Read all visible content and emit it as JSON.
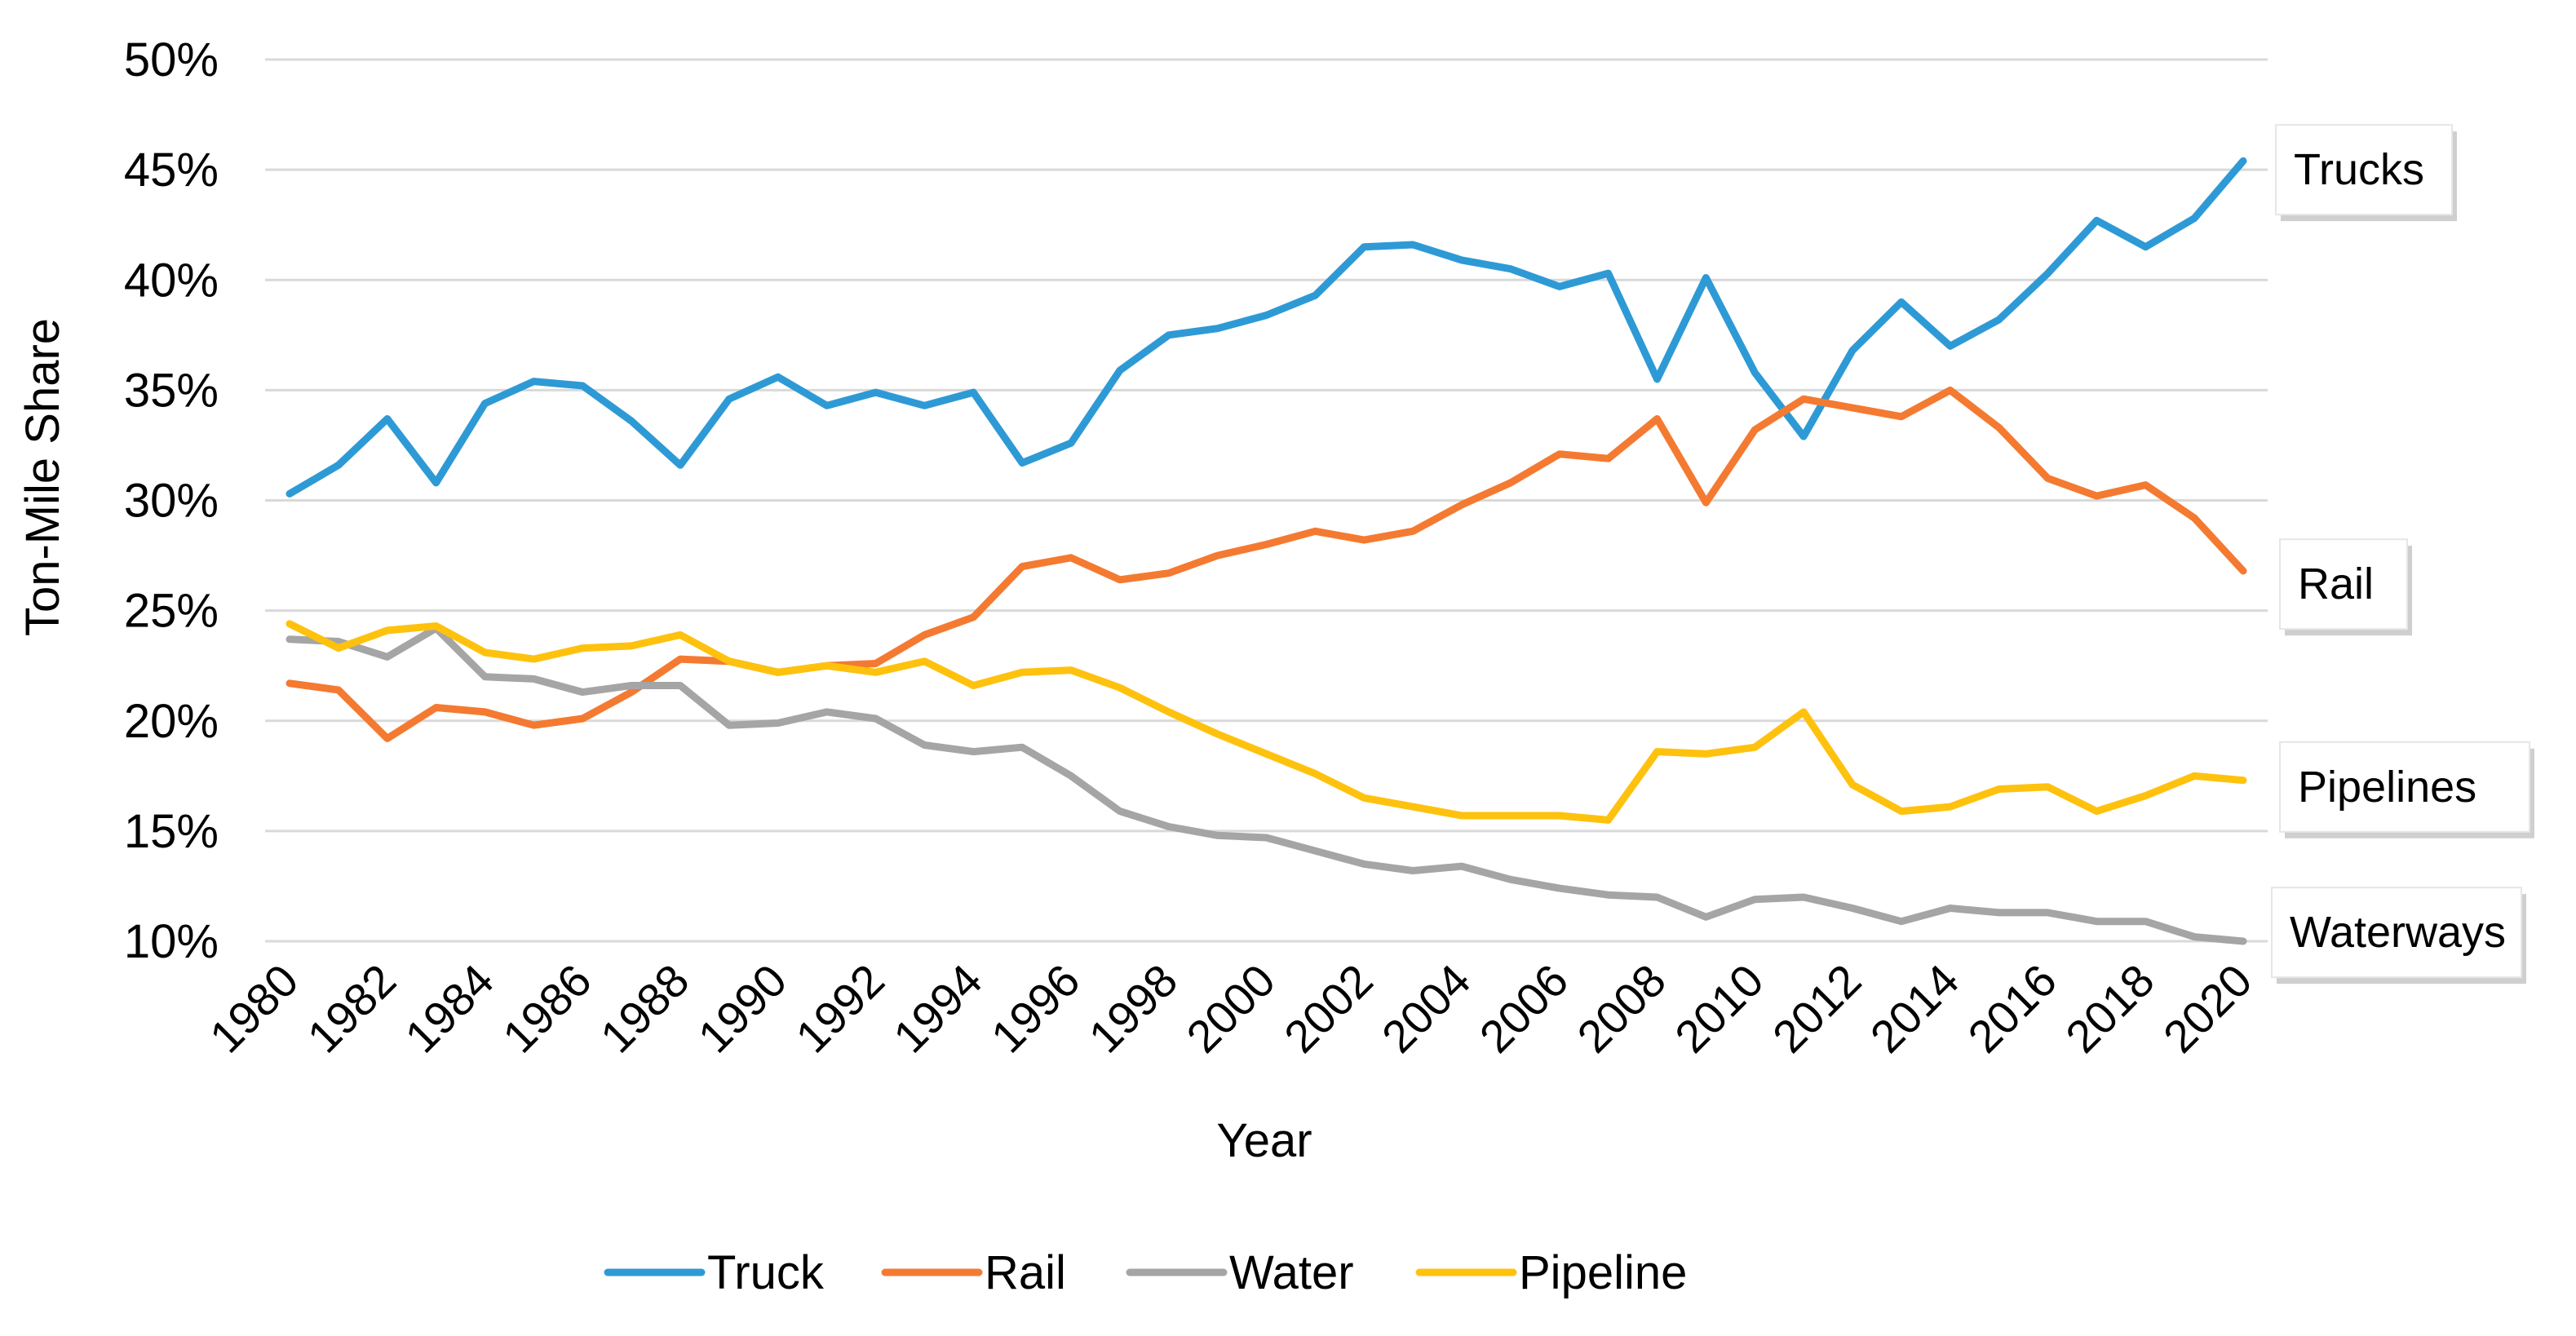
{
  "chart_data": {
    "type": "line",
    "title": "",
    "xlabel": "Year",
    "ylabel": "Ton-Mile Share",
    "ylim": [
      10,
      50
    ],
    "yticks": [
      10,
      15,
      20,
      25,
      30,
      35,
      40,
      45,
      50
    ],
    "ytick_suffix": "%",
    "grid": true,
    "legend_position": "bottom",
    "x": [
      1980,
      1981,
      1982,
      1983,
      1984,
      1985,
      1986,
      1987,
      1988,
      1989,
      1990,
      1991,
      1992,
      1993,
      1994,
      1995,
      1996,
      1997,
      1998,
      1999,
      2000,
      2001,
      2002,
      2003,
      2004,
      2005,
      2006,
      2007,
      2008,
      2009,
      2010,
      2011,
      2012,
      2013,
      2014,
      2015,
      2016,
      2017,
      2018,
      2019,
      2020
    ],
    "xtick_labels": [
      1980,
      1982,
      1984,
      1986,
      1988,
      1990,
      1992,
      1994,
      1996,
      1998,
      2000,
      2002,
      2004,
      2006,
      2008,
      2010,
      2012,
      2014,
      2016,
      2018,
      2020
    ],
    "series": [
      {
        "name": "Truck",
        "color": "#2e9ad5",
        "values": [
          30.3,
          31.6,
          33.7,
          30.8,
          34.4,
          35.4,
          35.2,
          33.6,
          31.6,
          34.6,
          35.6,
          34.3,
          34.9,
          34.3,
          34.9,
          31.7,
          32.6,
          35.9,
          37.5,
          37.8,
          38.4,
          39.3,
          41.5,
          41.6,
          40.9,
          40.5,
          39.7,
          40.3,
          35.5,
          40.1,
          35.8,
          32.9,
          36.8,
          39.0,
          37.0,
          38.2,
          40.3,
          42.7,
          41.5,
          42.8,
          45.4
        ]
      },
      {
        "name": "Rail",
        "color": "#f47a31",
        "values": [
          21.7,
          21.4,
          19.2,
          20.6,
          20.4,
          19.8,
          20.1,
          21.3,
          22.8,
          22.7,
          22.2,
          22.5,
          22.6,
          23.9,
          24.7,
          27.0,
          27.4,
          26.4,
          26.7,
          27.5,
          28.0,
          28.6,
          28.2,
          28.6,
          29.8,
          30.8,
          32.1,
          31.9,
          33.7,
          29.9,
          33.2,
          34.6,
          34.2,
          33.8,
          35.0,
          33.3,
          31.0,
          30.2,
          30.7,
          29.2,
          26.8
        ]
      },
      {
        "name": "Water",
        "color": "#a5a5a5",
        "values": [
          23.7,
          23.6,
          22.9,
          24.2,
          22.0,
          21.9,
          21.3,
          21.6,
          21.6,
          19.8,
          19.9,
          20.4,
          20.1,
          18.9,
          18.6,
          18.8,
          17.5,
          15.9,
          15.2,
          14.8,
          14.7,
          14.1,
          13.5,
          13.2,
          13.4,
          12.8,
          12.4,
          12.1,
          12.0,
          11.1,
          11.9,
          12.0,
          11.5,
          10.9,
          11.5,
          11.3,
          11.3,
          10.9,
          10.9,
          10.2,
          10.0
        ]
      },
      {
        "name": "Pipeline",
        "color": "#fec20e",
        "values": [
          24.4,
          23.3,
          24.1,
          24.3,
          23.1,
          22.8,
          23.3,
          23.4,
          23.9,
          22.7,
          22.2,
          22.5,
          22.2,
          22.7,
          21.6,
          22.2,
          22.3,
          21.5,
          20.4,
          19.4,
          18.5,
          17.6,
          16.5,
          16.1,
          15.7,
          15.7,
          15.7,
          15.5,
          18.6,
          18.5,
          18.8,
          20.4,
          17.1,
          15.9,
          16.1,
          16.9,
          17.0,
          15.9,
          16.6,
          17.5,
          17.3
        ]
      }
    ],
    "annotations": [
      {
        "text": "Trucks",
        "y": 45
      },
      {
        "text": "Rail",
        "y": 26.2
      },
      {
        "text": "Pipelines",
        "y": 17.0
      },
      {
        "text": "Waterways",
        "y": 10.4
      }
    ]
  }
}
